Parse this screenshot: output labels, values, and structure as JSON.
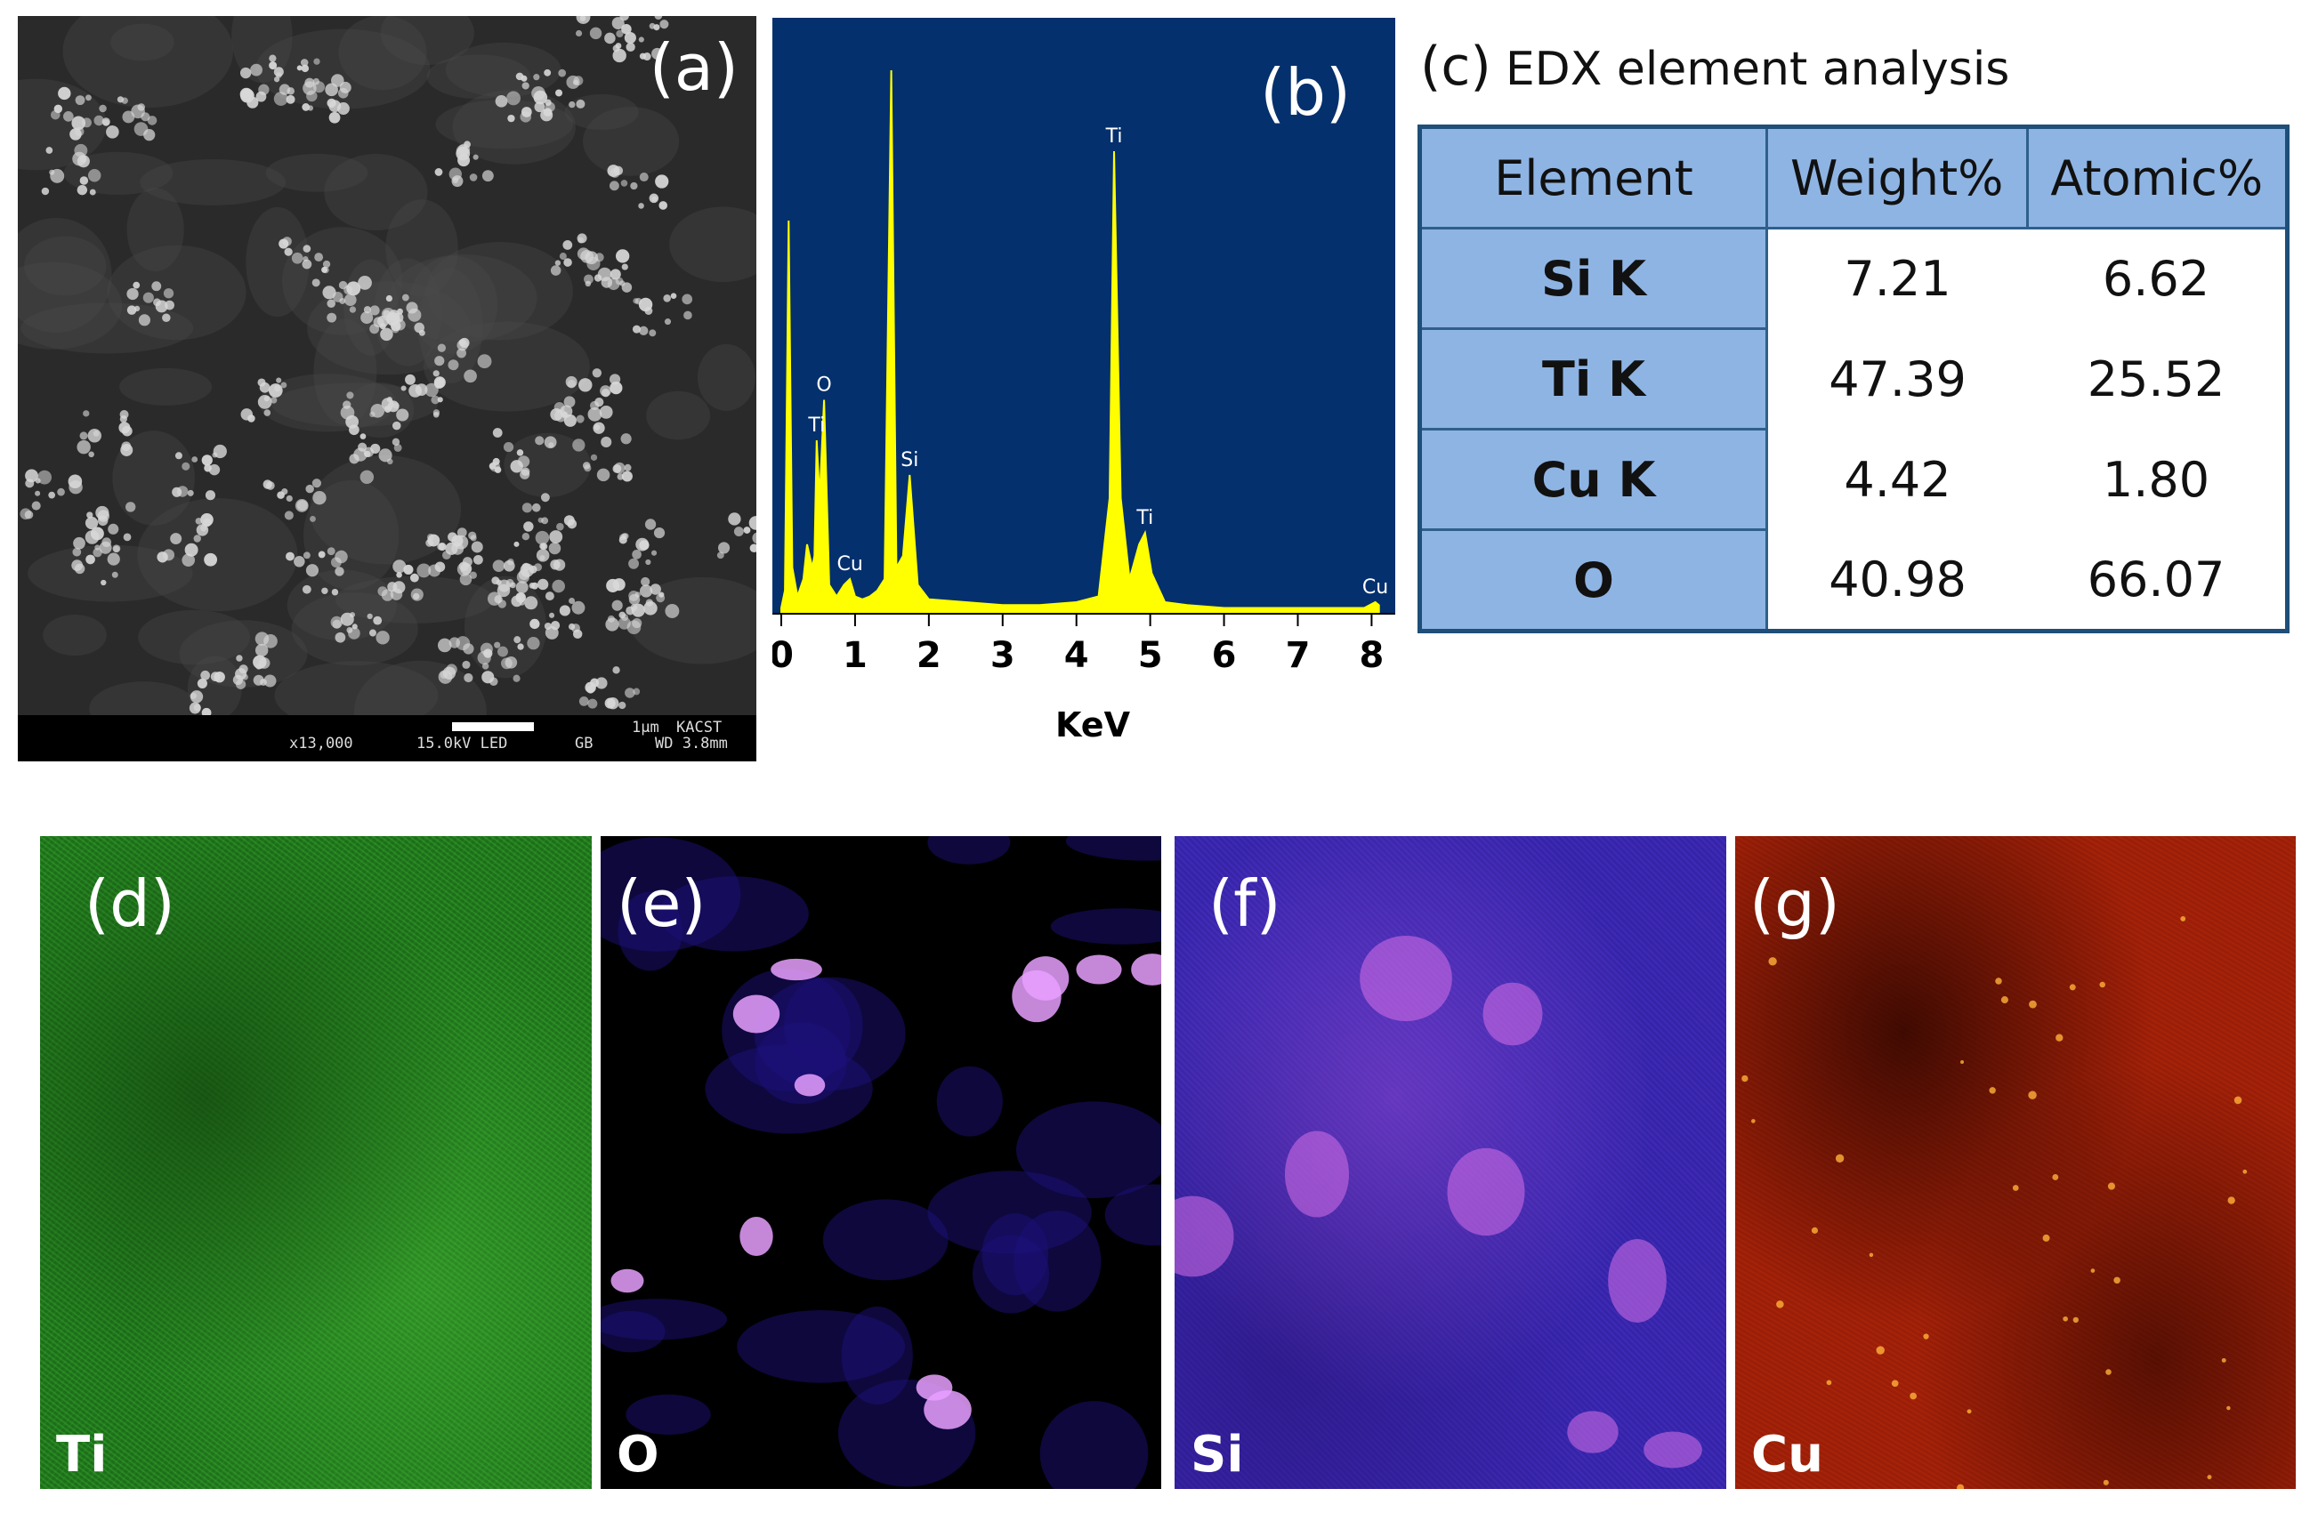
{
  "panel_a": {
    "label": "(a)",
    "info": {
      "mag": "x13,000",
      "kv": "15.0kV LED",
      "mode": "GB",
      "wd": "WD 3.8mm",
      "scale": "1μm",
      "org": "KACST"
    }
  },
  "panel_b": {
    "label": "(b)",
    "peak_labels": [
      "Ti",
      "O",
      "Si",
      "Cu",
      "Ti",
      "Ti",
      "Cu"
    ]
  },
  "panel_c": {
    "label": "(c)",
    "title": "EDX element analysis",
    "headers": [
      "Element",
      "Weight%",
      "Atomic%"
    ],
    "rows": [
      {
        "element": "Si K",
        "weight": "7.21",
        "atomic": "6.62"
      },
      {
        "element": "Ti K",
        "weight": "47.39",
        "atomic": "25.52"
      },
      {
        "element": "Cu K",
        "weight": "4.42",
        "atomic": "1.80"
      },
      {
        "element": "O",
        "weight": "40.98",
        "atomic": "66.07"
      }
    ]
  },
  "maps": [
    {
      "label": "(d)",
      "element": "Ti",
      "color": "#2fa52a"
    },
    {
      "label": "(e)",
      "element": "O",
      "color": "#3a1ad0"
    },
    {
      "label": "(f)",
      "element": "Si",
      "color": "#6a3ae0"
    },
    {
      "label": "(g)",
      "element": "Cu",
      "color": "#c2320e"
    }
  ],
  "chart_data": {
    "type": "line",
    "xlabel": "KeV",
    "xlim": [
      0,
      8.2
    ],
    "ylim": [
      0,
      100
    ],
    "xticks": [
      "0",
      "1",
      "2",
      "3",
      "4",
      "5",
      "6",
      "7",
      "8"
    ],
    "background": "#04306d",
    "line_color": "#ffff00",
    "spectrum": [
      [
        0.0,
        1
      ],
      [
        0.05,
        4
      ],
      [
        0.1,
        68
      ],
      [
        0.15,
        8
      ],
      [
        0.22,
        3
      ],
      [
        0.3,
        6
      ],
      [
        0.35,
        12
      ],
      [
        0.42,
        8
      ],
      [
        0.45,
        10
      ],
      [
        0.48,
        30
      ],
      [
        0.52,
        20
      ],
      [
        0.58,
        37
      ],
      [
        0.65,
        5
      ],
      [
        0.75,
        3
      ],
      [
        0.85,
        5
      ],
      [
        0.93,
        6
      ],
      [
        1.0,
        3
      ],
      [
        1.1,
        2.5
      ],
      [
        1.2,
        3
      ],
      [
        1.3,
        4
      ],
      [
        1.4,
        6
      ],
      [
        1.49,
        94
      ],
      [
        1.56,
        8
      ],
      [
        1.65,
        10
      ],
      [
        1.74,
        24
      ],
      [
        1.85,
        5
      ],
      [
        2.0,
        2.5
      ],
      [
        2.5,
        2
      ],
      [
        3.0,
        1.5
      ],
      [
        3.5,
        1.5
      ],
      [
        4.0,
        2
      ],
      [
        4.3,
        3
      ],
      [
        4.45,
        20
      ],
      [
        4.51,
        80
      ],
      [
        4.6,
        20
      ],
      [
        4.72,
        6
      ],
      [
        4.85,
        12
      ],
      [
        4.93,
        14
      ],
      [
        5.02,
        7
      ],
      [
        5.2,
        2
      ],
      [
        5.5,
        1.5
      ],
      [
        6.0,
        1
      ],
      [
        6.5,
        1
      ],
      [
        7.0,
        1
      ],
      [
        7.5,
        1
      ],
      [
        7.9,
        1
      ],
      [
        8.05,
        2
      ],
      [
        8.1,
        1.5
      ]
    ],
    "peaks": [
      {
        "label": "O",
        "x": 0.58,
        "y": 37
      },
      {
        "label": "Ti",
        "x": 0.48,
        "y": 30
      },
      {
        "label": "Cu",
        "x": 0.93,
        "y": 6
      },
      {
        "label": "Si",
        "x": 1.74,
        "y": 24
      },
      {
        "label": "Ti",
        "x": 4.51,
        "y": 80
      },
      {
        "label": "Ti",
        "x": 4.93,
        "y": 14
      },
      {
        "label": "Cu",
        "x": 8.05,
        "y": 2
      }
    ]
  }
}
